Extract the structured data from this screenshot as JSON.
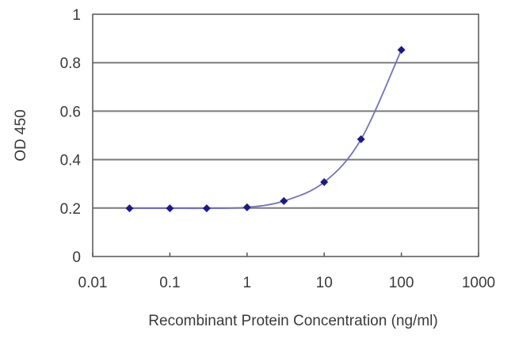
{
  "chart_data": {
    "type": "line",
    "title": "",
    "xlabel": "Recombinant Protein Concentration (ng/ml)",
    "ylabel": "OD 450",
    "xscale": "log",
    "xlim": [
      0.01,
      1000
    ],
    "ylim": [
      0,
      1
    ],
    "grid": {
      "horizontal": true,
      "vertical": false
    },
    "legend": null,
    "x_tick_labels": [
      "0.01",
      "0.1",
      "1",
      "10",
      "100",
      "1000"
    ],
    "y_tick_labels": [
      "0",
      "0.2",
      "0.4",
      "0.6",
      "0.8",
      "1"
    ],
    "series": [
      {
        "name": "OD 450",
        "marker": "diamond",
        "color": "#1a1a8c",
        "line_color": "#7070c0",
        "x": [
          0.03,
          0.1,
          0.3,
          1,
          3,
          10,
          30,
          100
        ],
        "values": [
          0.199,
          0.199,
          0.199,
          0.203,
          0.229,
          0.307,
          0.484,
          0.853
        ]
      }
    ]
  },
  "colors": {
    "marker": "#1a1a8c",
    "line": "#7070c0",
    "gridline": "#7a7a7a",
    "frame": "#555555",
    "text": "#3a3a3a"
  }
}
